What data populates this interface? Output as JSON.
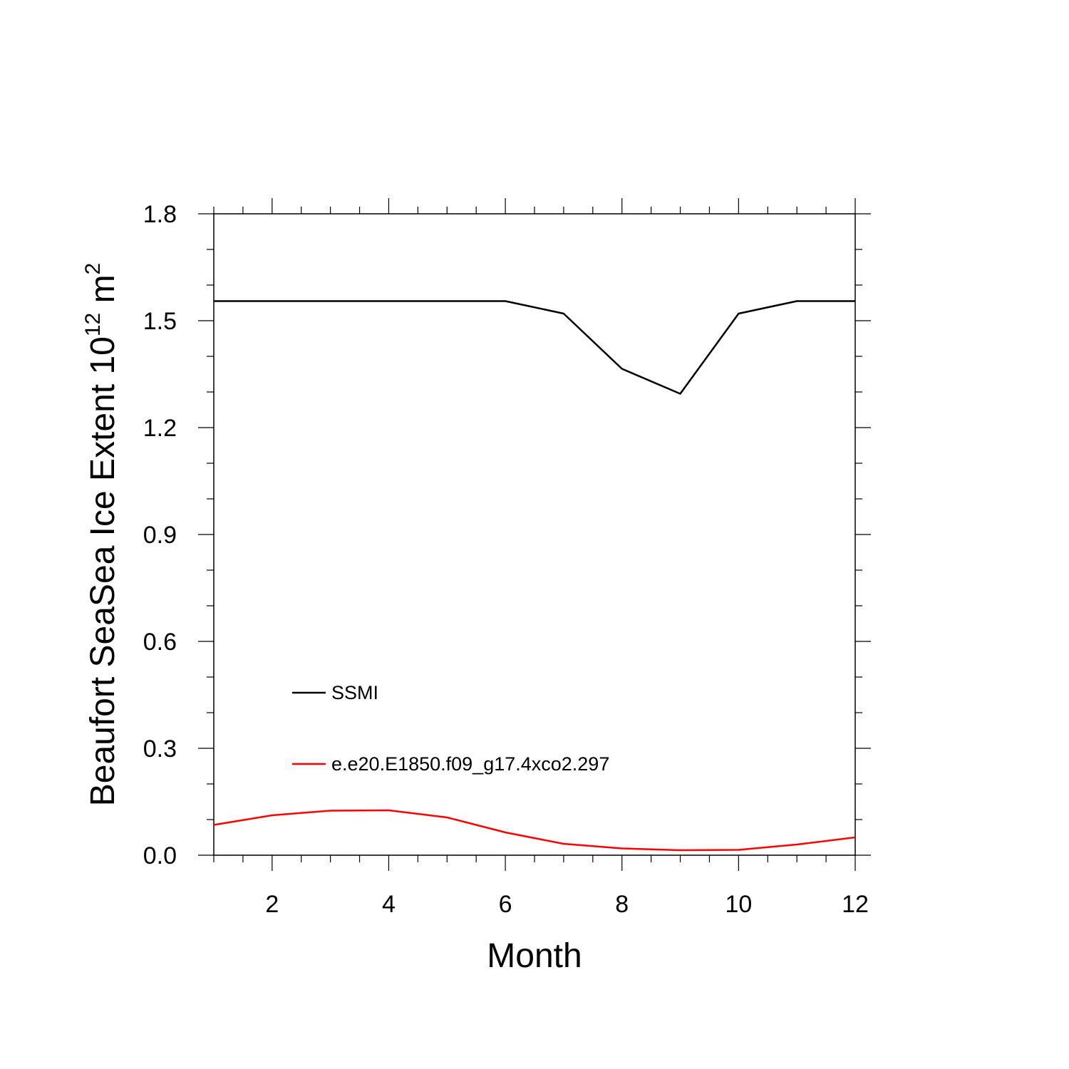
{
  "chart_data": {
    "type": "line",
    "xlabel": "Month",
    "ylabel": {
      "prefix": "Beaufort SeaSea Ice Extent 10",
      "superscript": "12",
      "middle": " m",
      "superscript2": "2"
    },
    "xlim": [
      1,
      12
    ],
    "ylim": [
      0.0,
      1.8
    ],
    "xticks": [
      2,
      4,
      6,
      8,
      10,
      12
    ],
    "xtick_labels": [
      "2",
      "4",
      "6",
      "8",
      "10",
      "12"
    ],
    "yticks": [
      0.0,
      0.3,
      0.6,
      0.9,
      1.2,
      1.5,
      1.8
    ],
    "ytick_labels": [
      "0.0",
      "0.3",
      "0.6",
      "0.9",
      "1.2",
      "1.5",
      "1.8"
    ],
    "x": [
      1,
      2,
      3,
      4,
      5,
      6,
      7,
      8,
      9,
      10,
      11,
      12
    ],
    "series": [
      {
        "name": "SSMI",
        "color": "#000000",
        "values": [
          1.555,
          1.555,
          1.555,
          1.555,
          1.555,
          1.555,
          1.52,
          1.365,
          1.295,
          1.52,
          1.555,
          1.555
        ]
      },
      {
        "name": "e.e20.E1850.f09_g17.4xco2.297",
        "color": "#ff0000",
        "values": [
          0.085,
          0.112,
          0.125,
          0.126,
          0.106,
          0.064,
          0.032,
          0.019,
          0.014,
          0.015,
          0.03,
          0.05
        ]
      }
    ],
    "legend_placement": "lower-left inside",
    "grid": false
  }
}
